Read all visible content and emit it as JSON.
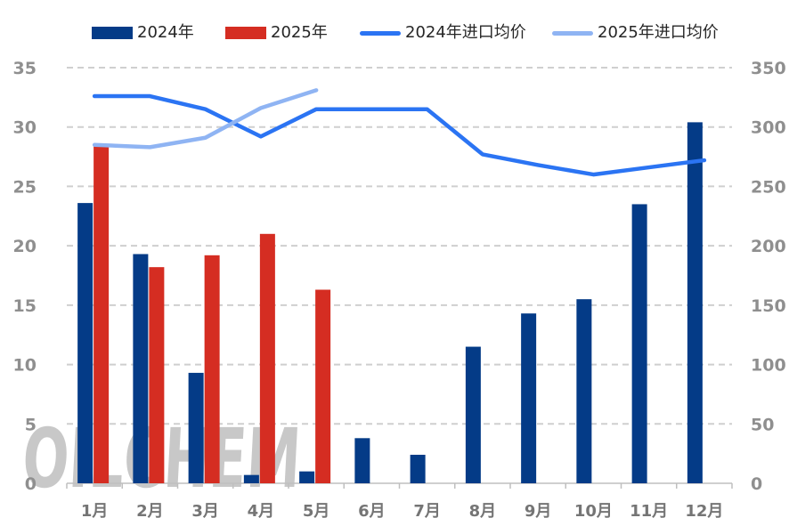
{
  "legend": {
    "items": [
      {
        "label": "2024年",
        "type": "bar",
        "color": "#043B87"
      },
      {
        "label": "2025年",
        "type": "bar",
        "color": "#D52D22"
      },
      {
        "label": "2024年进口均价",
        "type": "line",
        "color": "#2B74F3"
      },
      {
        "label": "2025年进口均价",
        "type": "line",
        "color": "#8FB4F3"
      }
    ]
  },
  "watermark": "OILCHEM",
  "chart_data": {
    "type": "combo",
    "categories": [
      "1月",
      "2月",
      "3月",
      "4月",
      "5月",
      "6月",
      "7月",
      "8月",
      "9月",
      "10月",
      "11月",
      "12月"
    ],
    "series": [
      {
        "name": "2024年",
        "type": "bar",
        "axis": "left",
        "color": "#043B87",
        "values": [
          23.6,
          19.3,
          9.3,
          0.7,
          1.0,
          3.8,
          2.4,
          11.5,
          14.3,
          15.5,
          23.5,
          30.4
        ]
      },
      {
        "name": "2025年",
        "type": "bar",
        "axis": "left",
        "color": "#D52D22",
        "values": [
          28.5,
          18.2,
          19.2,
          21.0,
          16.3,
          null,
          null,
          null,
          null,
          null,
          null,
          null
        ]
      },
      {
        "name": "2024年进口均价",
        "type": "line",
        "axis": "right",
        "color": "#2B74F3",
        "values": [
          326,
          326,
          315,
          292,
          315,
          315,
          315,
          277,
          268,
          260,
          266,
          272
        ]
      },
      {
        "name": "2025年进口均价",
        "type": "line",
        "axis": "right",
        "color": "#8FB4F3",
        "values": [
          285,
          283,
          291,
          316,
          331,
          null,
          null,
          null,
          null,
          null,
          null,
          null
        ]
      }
    ],
    "left_axis": {
      "min": 0,
      "max": 35,
      "step": 5,
      "ticks": [
        0,
        5,
        10,
        15,
        20,
        25,
        30,
        35
      ]
    },
    "right_axis": {
      "min": 0,
      "max": 350,
      "step": 50,
      "ticks": [
        0,
        50,
        100,
        150,
        200,
        250,
        300,
        350
      ]
    },
    "grid": true,
    "gridline_style": "dashed",
    "legend_position": "top",
    "colors": {
      "gridline": "#CFCFCF",
      "axis_line": "#BFBFBF",
      "tick_label": "#8F8F8F",
      "month_label": "#757575",
      "watermark": "#C8C8C8",
      "legend_text": "#262626"
    }
  }
}
